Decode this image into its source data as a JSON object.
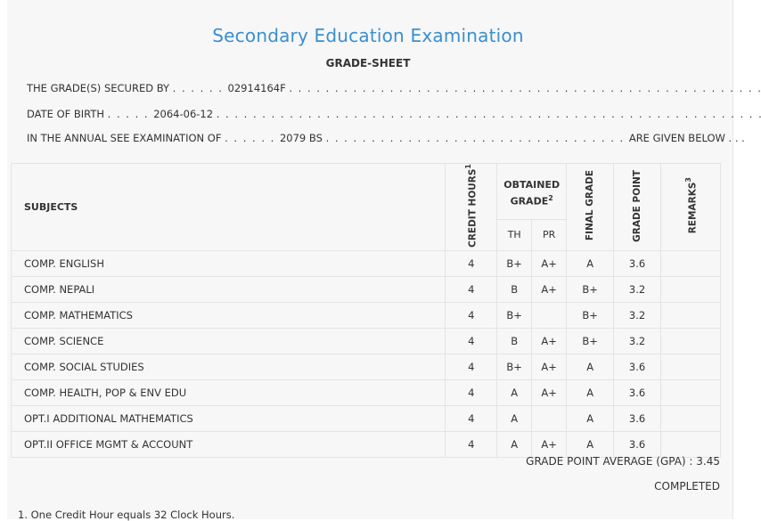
{
  "header": {
    "title": "Secondary Education Examination",
    "subtitle": "GRADE-SHEET"
  },
  "info": {
    "line1_label": "THE GRADE(S) SECURED BY",
    "line1_value": "02914164F",
    "line2_label": "DATE OF BIRTH",
    "line2_value": "2064-06-12",
    "line3_label": "IN THE ANNUAL SEE EXAMINATION OF",
    "line3_value": "2079 BS",
    "line3_suffix": "ARE GIVEN BELOW . . ."
  },
  "table": {
    "headers": {
      "subjects": "SUBJECTS",
      "credit_hours": "CREDIT HOURS",
      "credit_sup": "1",
      "obtained_grade": "OBTAINED GRADE",
      "obtained_sup": "2",
      "th": "TH",
      "pr": "PR",
      "final_grade": "FINAL GRADE",
      "grade_point": "GRADE POINT",
      "remarks": "REMARKS",
      "remarks_sup": "3"
    },
    "rows": [
      {
        "subject": "COMP. ENGLISH",
        "credit": "4",
        "th": "B+",
        "pr": "A+",
        "final": "A",
        "gp": "3.6",
        "remarks": ""
      },
      {
        "subject": "COMP. NEPALI",
        "credit": "4",
        "th": "B",
        "pr": "A+",
        "final": "B+",
        "gp": "3.2",
        "remarks": ""
      },
      {
        "subject": "COMP. MATHEMATICS",
        "credit": "4",
        "th": "B+",
        "pr": "",
        "final": "B+",
        "gp": "3.2",
        "remarks": ""
      },
      {
        "subject": "COMP. SCIENCE",
        "credit": "4",
        "th": "B",
        "pr": "A+",
        "final": "B+",
        "gp": "3.2",
        "remarks": ""
      },
      {
        "subject": "COMP. SOCIAL STUDIES",
        "credit": "4",
        "th": "B+",
        "pr": "A+",
        "final": "A",
        "gp": "3.6",
        "remarks": ""
      },
      {
        "subject": "COMP. HEALTH, POP & ENV EDU",
        "credit": "4",
        "th": "A",
        "pr": "A+",
        "final": "A",
        "gp": "3.6",
        "remarks": ""
      },
      {
        "subject": "OPT.I ADDITIONAL MATHEMATICS",
        "credit": "4",
        "th": "A",
        "pr": "",
        "final": "A",
        "gp": "3.6",
        "remarks": ""
      },
      {
        "subject": "OPT.II OFFICE MGMT & ACCOUNT",
        "credit": "4",
        "th": "A",
        "pr": "A+",
        "final": "A",
        "gp": "3.6",
        "remarks": ""
      }
    ]
  },
  "summary": {
    "gpa": "GRADE POINT AVERAGE (GPA) : 3.45",
    "status": "COMPLETED"
  },
  "footnotes": {
    "note1": "1. One Credit Hour equals 32 Clock Hours."
  }
}
